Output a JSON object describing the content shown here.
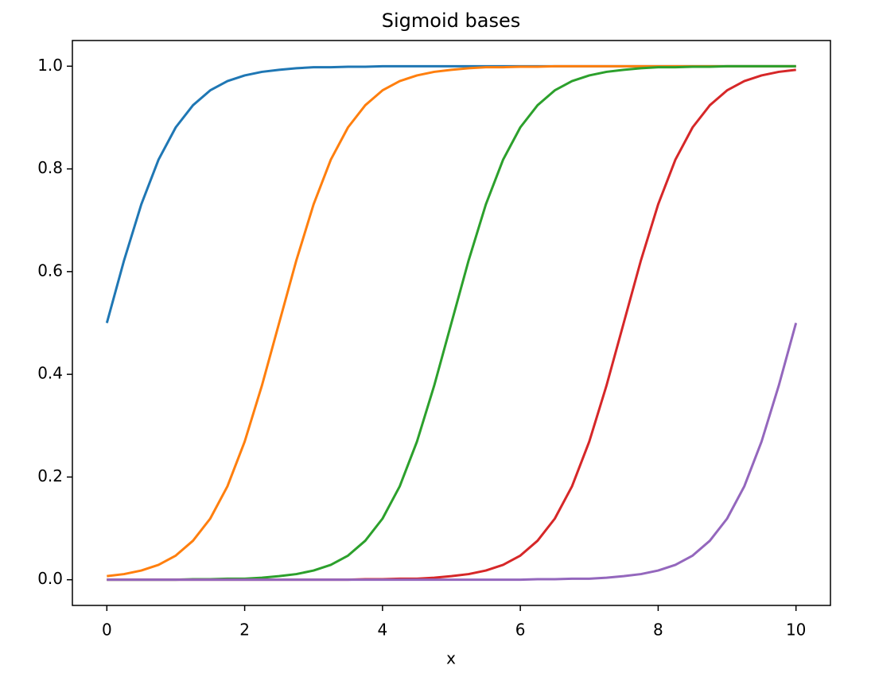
{
  "chart_data": {
    "type": "line",
    "title": "Sigmoid bases",
    "x_label": "x",
    "x": [
      0,
      0.25,
      0.5,
      0.75,
      1,
      1.25,
      1.5,
      1.75,
      2,
      2.25,
      2.5,
      2.75,
      3,
      3.25,
      3.5,
      3.75,
      4,
      4.25,
      4.5,
      4.75,
      5,
      5.25,
      5.5,
      5.75,
      6,
      6.25,
      6.5,
      6.75,
      7,
      7.25,
      7.5,
      7.75,
      8,
      8.25,
      8.5,
      8.75,
      9,
      9.25,
      9.5,
      9.75,
      10
    ],
    "series": [
      {
        "color": "#1f77b4",
        "values": [
          0.5,
          0.622,
          0.731,
          0.818,
          0.881,
          0.924,
          0.953,
          0.971,
          0.982,
          0.989,
          0.993,
          0.996,
          0.998,
          0.998,
          0.999,
          0.999,
          1,
          1,
          1,
          1,
          1,
          1,
          1,
          1,
          1,
          1,
          1,
          1,
          1,
          1,
          1,
          1,
          1,
          1,
          1,
          1,
          1,
          1,
          1,
          1,
          1
        ]
      },
      {
        "color": "#ff7f0e",
        "values": [
          0.007,
          0.011,
          0.018,
          0.029,
          0.047,
          0.076,
          0.119,
          0.182,
          0.269,
          0.378,
          0.5,
          0.622,
          0.731,
          0.818,
          0.881,
          0.924,
          0.953,
          0.971,
          0.982,
          0.989,
          0.993,
          0.996,
          0.998,
          0.998,
          0.999,
          0.999,
          1,
          1,
          1,
          1,
          1,
          1,
          1,
          1,
          1,
          1,
          1,
          1,
          1,
          1,
          1
        ]
      },
      {
        "color": "#2ca02c",
        "values": [
          0,
          0,
          0,
          0,
          0,
          0.001,
          0.001,
          0.002,
          0.002,
          0.004,
          0.007,
          0.011,
          0.018,
          0.029,
          0.047,
          0.076,
          0.119,
          0.182,
          0.269,
          0.378,
          0.5,
          0.622,
          0.731,
          0.818,
          0.881,
          0.924,
          0.953,
          0.971,
          0.982,
          0.989,
          0.993,
          0.996,
          0.998,
          0.998,
          0.999,
          0.999,
          1,
          1,
          1,
          1,
          1
        ]
      },
      {
        "color": "#d62728",
        "values": [
          0,
          0,
          0,
          0,
          0,
          0,
          0,
          0,
          0,
          0,
          0,
          0,
          0,
          0,
          0,
          0.001,
          0.001,
          0.002,
          0.002,
          0.004,
          0.007,
          0.011,
          0.018,
          0.029,
          0.047,
          0.076,
          0.119,
          0.182,
          0.269,
          0.378,
          0.5,
          0.622,
          0.731,
          0.818,
          0.881,
          0.924,
          0.953,
          0.971,
          0.982,
          0.989,
          0.993
        ]
      },
      {
        "color": "#9467bd",
        "values": [
          0,
          0,
          0,
          0,
          0,
          0,
          0,
          0,
          0,
          0,
          0,
          0,
          0,
          0,
          0,
          0,
          0,
          0,
          0,
          0,
          0,
          0,
          0,
          0,
          0,
          0.001,
          0.001,
          0.002,
          0.002,
          0.004,
          0.007,
          0.011,
          0.018,
          0.029,
          0.047,
          0.076,
          0.119,
          0.182,
          0.269,
          0.378,
          0.5
        ]
      }
    ],
    "xlim": [
      -0.5,
      10.5
    ],
    "xticks": [
      0,
      2,
      4,
      6,
      8,
      10
    ],
    "ylim": [
      -0.05,
      1.05
    ],
    "yticks": [
      {
        "value": 0,
        "label": "0.0"
      },
      0.2,
      0.4,
      0.6,
      0.8,
      {
        "value": 1,
        "label": "1.0"
      }
    ]
  }
}
